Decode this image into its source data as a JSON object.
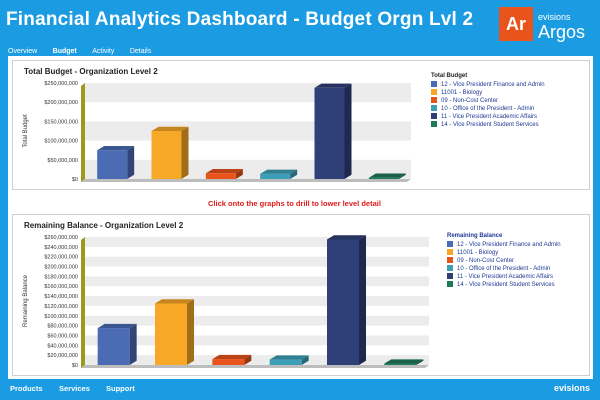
{
  "header": {
    "title": "Financial Analytics Dashboard - Budget Orgn Lvl 2",
    "nav": [
      "Overview",
      "Budget",
      "Activity",
      "Details"
    ],
    "active_nav": "Budget",
    "logo": {
      "mark": "Ar",
      "small": "evisions",
      "big": "Argos"
    }
  },
  "drill_message": "Click onto the graphs to drill to lower level detail",
  "footer": {
    "links": [
      "Products",
      "Services",
      "Support"
    ],
    "brand": "evisions"
  },
  "colors": {
    "header_bg": "#1a9be2",
    "drill_text": "#e01b1b",
    "series": [
      "#4b6bb5",
      "#f7a827",
      "#e8541c",
      "#3d9fb7",
      "#2f3f78",
      "#1f7a5a"
    ]
  },
  "chart_data": [
    {
      "type": "bar",
      "title": "Total Budget - Organization Level 2",
      "ylabel": "Total Budget",
      "legend_title": "Total Budget",
      "categories": [
        "12 - Vice President Finance and Admin",
        "11001 - Biology",
        "09 - Non-Cost Center",
        "10 - Office of the President - Admin",
        "11 - Vice President Academic Affairs",
        "14 - Vice President Student Services"
      ],
      "values": [
        90000000,
        150000000,
        18000000,
        16000000,
        285000000,
        4000000
      ],
      "yticks": [
        "$0",
        "$50,000,000",
        "$100,000,000",
        "$150,000,000",
        "$200,000,000",
        "$250,000,000"
      ],
      "ylim": [
        0,
        300000000
      ],
      "grid": true,
      "legend": "right"
    },
    {
      "type": "bar",
      "title": "Remaining Balance - Organization Level 2",
      "ylabel": "Remaining Balance",
      "legend_title": "Remaining Balance",
      "categories": [
        "12 - Vice President Finance and Admin",
        "11001 - Biology",
        "09 - Non-Cost Center",
        "10 - Office of the President - Admin",
        "11 - Vice President Academic Affairs",
        "14 - Vice President Student Services"
      ],
      "values": [
        75000000,
        125000000,
        12000000,
        11000000,
        255000000,
        3000000
      ],
      "yticks": [
        "$0",
        "$20,000,000",
        "$40,000,000",
        "$60,000,000",
        "$80,000,000",
        "$100,000,000",
        "$120,000,000",
        "$140,000,000",
        "$160,000,000",
        "$180,000,000",
        "$200,000,000",
        "$220,000,000",
        "$240,000,000",
        "$260,000,000"
      ],
      "ylim": [
        0,
        260000000
      ],
      "grid": true,
      "legend": "right"
    }
  ]
}
